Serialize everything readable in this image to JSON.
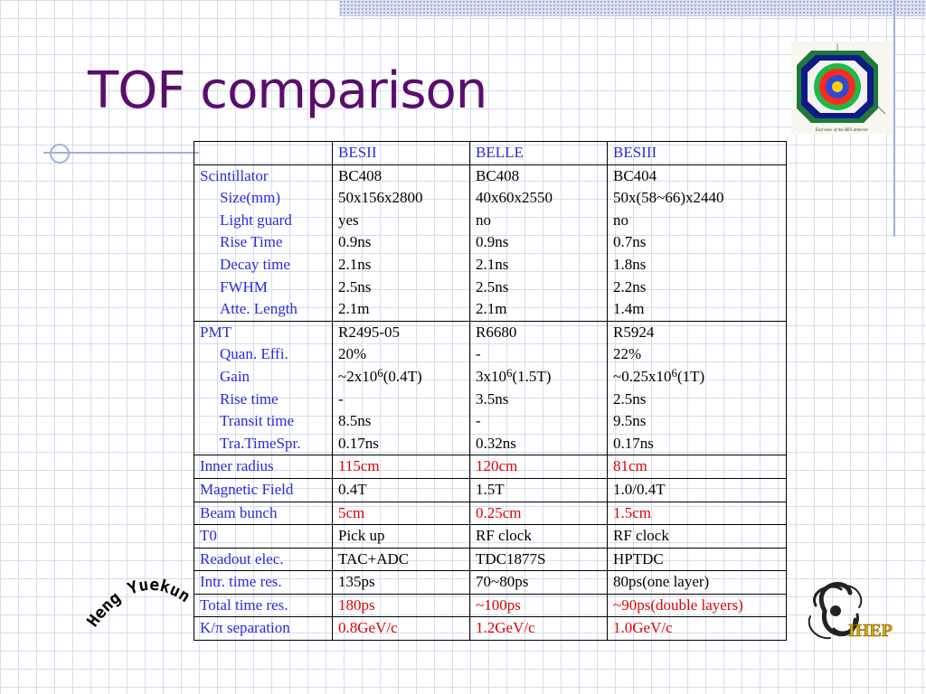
{
  "slide": {
    "title": "TOF comparison",
    "detector_caption": "End view of the BES detector",
    "signature_text": "Heng Yuekun",
    "logo_text": "IHEP"
  },
  "colors": {
    "title": "#5a0d6e",
    "header_text": "#2a2ae0",
    "highlight_red": "#e00000",
    "grid": "#d6dcee"
  },
  "table": {
    "headers": [
      "",
      "BESII",
      "BELLE",
      "BESIII"
    ],
    "scintillator": {
      "label": "Scintillator",
      "sub_labels": [
        "Size(mm)",
        "Light guard",
        "Rise Time",
        "Decay time",
        "FWHM",
        "Atte. Length"
      ],
      "besii": [
        "BC408",
        "50x156x2800",
        "yes",
        "0.9ns",
        "2.1ns",
        "2.5ns",
        "2.1m"
      ],
      "belle": [
        "BC408",
        "40x60x2550",
        "no",
        "0.9ns",
        "2.1ns",
        "2.5ns",
        "2.1m"
      ],
      "besiii": [
        "BC404",
        "50x(58~66)x2440",
        "no",
        "0.7ns",
        "1.8ns",
        "2.2ns",
        "1.4m"
      ]
    },
    "pmt": {
      "label": "PMT",
      "sub_labels": [
        "Quan. Effi.",
        "Gain",
        "Rise time",
        "Transit time",
        "Tra.TimeSpr."
      ],
      "besii": {
        "model": "R2495-05",
        "qe": "20%",
        "gain_base": "~2x10",
        "gain_exp": "6",
        "gain_field": "(0.4T)",
        "rise": "-",
        "transit": "8.5ns",
        "tts": "0.17ns"
      },
      "belle": {
        "model": "R6680",
        "qe": "-",
        "gain_base": "3x10",
        "gain_exp": "6",
        "gain_field": "(1.5T)",
        "rise": "3.5ns",
        "transit": "-",
        "tts": "0.32ns"
      },
      "besiii": {
        "model": "R5924",
        "qe": "22%",
        "gain_base": "~0.25x10",
        "gain_exp": "6",
        "gain_field": "(1T)",
        "rise": "2.5ns",
        "transit": "9.5ns",
        "tts": "0.17ns"
      }
    },
    "rows": [
      {
        "label": "Inner radius",
        "besii": "115cm",
        "belle": "120cm",
        "besiii": "81cm",
        "red": true
      },
      {
        "label": "Magnetic Field",
        "besii": "0.4T",
        "belle": "1.5T",
        "besiii": "1.0/0.4T",
        "red": false
      },
      {
        "label": "Beam bunch",
        "besii": "5cm",
        "belle": "0.25cm",
        "besiii": "1.5cm",
        "red": true
      },
      {
        "label": "T0",
        "besii": "Pick up",
        "belle": "RF clock",
        "besiii": "RF clock",
        "red": false
      },
      {
        "label": "Readout elec.",
        "besii": "TAC+ADC",
        "belle": "TDC1877S",
        "besiii": "HPTDC",
        "red": false
      },
      {
        "label": "Intr. time res.",
        "besii": "135ps",
        "belle": "70~80ps",
        "besiii": "80ps(one layer)",
        "red": false
      },
      {
        "label": "Total time res.",
        "besii": "180ps",
        "belle": "~100ps",
        "besiii": "~90ps(double layers)",
        "red": true
      },
      {
        "label": "K/π separation",
        "besii": "0.8GeV/c",
        "belle": "1.2GeV/c",
        "besiii": "1.0GeV/c",
        "red": true
      }
    ]
  }
}
